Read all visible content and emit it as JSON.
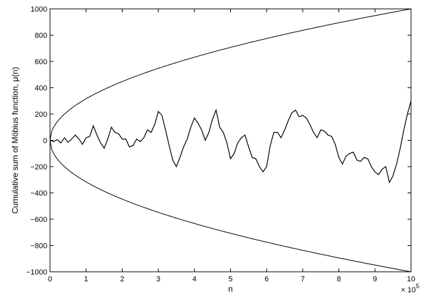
{
  "chart_data": {
    "type": "line",
    "title": "",
    "xlabel": "n",
    "ylabel": "Cumulative sum of Möbius function, μ(n)",
    "x_exponent_label": "× 10",
    "x_exponent_power": "5",
    "xlim": [
      0,
      10
    ],
    "ylim": [
      -1000,
      1000
    ],
    "x_ticks": [
      0,
      1,
      2,
      3,
      4,
      5,
      6,
      7,
      8,
      9,
      10
    ],
    "x_tick_labels": [
      "0",
      "1",
      "2",
      "3",
      "4",
      "5",
      "6",
      "7",
      "8",
      "9",
      "10"
    ],
    "y_ticks": [
      -1000,
      -800,
      -600,
      -400,
      -200,
      0,
      200,
      400,
      600,
      800,
      1000
    ],
    "y_tick_labels": [
      "−1000",
      "−800",
      "−600",
      "−400",
      "−200",
      "0",
      "200",
      "400",
      "600",
      "800",
      "1000"
    ],
    "grid": false,
    "legend": "none",
    "series": [
      {
        "x": [
          0,
          0.1,
          0.2,
          0.3,
          0.4,
          0.5,
          0.6,
          0.7,
          0.8,
          0.9,
          1.0,
          1.1,
          1.2,
          1.3,
          1.4,
          1.5,
          1.6,
          1.7,
          1.8,
          1.9,
          2.0,
          2.1,
          2.2,
          2.3,
          2.4,
          2.5,
          2.6,
          2.7,
          2.8,
          2.9,
          3.0,
          3.1,
          3.2,
          3.3,
          3.4,
          3.5,
          3.6,
          3.7,
          3.8,
          3.9,
          4.0,
          4.1,
          4.2,
          4.3,
          4.4,
          4.5,
          4.6,
          4.7,
          4.8,
          4.9,
          5.0,
          5.1,
          5.2,
          5.3,
          5.4,
          5.5,
          5.6,
          5.7,
          5.8,
          5.9,
          6.0,
          6.1,
          6.2,
          6.3,
          6.4,
          6.5,
          6.6,
          6.7,
          6.8,
          6.9,
          7.0,
          7.1,
          7.2,
          7.3,
          7.4,
          7.5,
          7.6,
          7.7,
          7.8,
          7.9,
          8.0,
          8.1,
          8.2,
          8.3,
          8.4,
          8.5,
          8.6,
          8.7,
          8.8,
          8.9,
          9.0,
          9.1,
          9.2,
          9.3,
          9.4,
          9.5,
          9.6,
          9.7,
          9.8,
          9.9,
          10.0
        ],
        "values": [
          0,
          -10,
          5,
          -20,
          20,
          -15,
          10,
          40,
          10,
          -30,
          20,
          30,
          110,
          40,
          -20,
          -60,
          10,
          100,
          60,
          50,
          10,
          10,
          -50,
          -40,
          10,
          -10,
          20,
          80,
          60,
          120,
          220,
          190,
          80,
          -40,
          -150,
          -200,
          -130,
          -50,
          10,
          100,
          170,
          130,
          80,
          0,
          60,
          160,
          230,
          100,
          60,
          -20,
          -140,
          -100,
          -20,
          20,
          40,
          -50,
          -130,
          -140,
          -200,
          -240,
          -200,
          -40,
          60,
          60,
          20,
          80,
          150,
          210,
          230,
          180,
          190,
          170,
          120,
          60,
          20,
          80,
          70,
          40,
          30,
          -30,
          -130,
          -180,
          -120,
          -100,
          -90,
          -150,
          -160,
          -130,
          -140,
          -200,
          -240,
          -260,
          -220,
          -200,
          -320,
          -270,
          -180,
          -60,
          80,
          200,
          300
        ]
      },
      {
        "function": "sqrt",
        "expression": "+sqrt(n)",
        "x_start": 0,
        "x_end": 10
      },
      {
        "function": "neg_sqrt",
        "expression": "-sqrt(n)",
        "x_start": 0,
        "x_end": 10
      }
    ]
  }
}
